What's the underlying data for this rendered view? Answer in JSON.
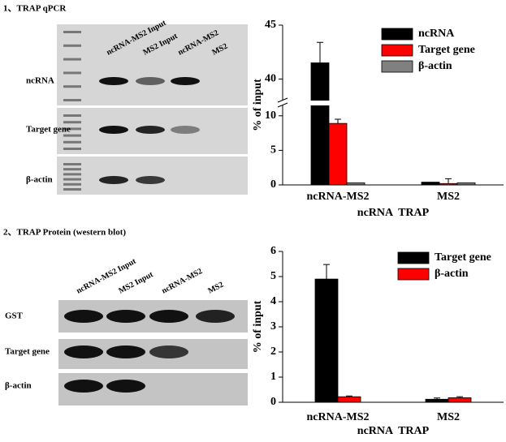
{
  "sections": [
    {
      "title": "1、TRAP qPCR"
    },
    {
      "title": "2、TRAP Protein (western blot)"
    }
  ],
  "gels": [
    {
      "lanes": [
        "ncRNA-MS2 Input",
        "MS2 Input",
        "ncRNA-MS2",
        "MS2"
      ],
      "rows": [
        "ncRNA",
        "Target gene",
        "β-actin"
      ]
    },
    {
      "lanes": [
        "ncRNA-MS2 Input",
        "MS2 Input",
        "ncRNA-MS2",
        "MS2"
      ],
      "rows": [
        "GST",
        "Target gene",
        "β-actin"
      ]
    }
  ],
  "chart_data": [
    {
      "type": "bar",
      "x_label": "ncRNA  TRAP",
      "y_label": "% of input",
      "categories": [
        "ncRNA-MS2",
        "MS2"
      ],
      "series": [
        {
          "name": "ncRNA",
          "color": "#000000",
          "values": [
            41.5,
            0.4
          ],
          "errors": [
            1.9,
            null
          ]
        },
        {
          "name": "Target gene",
          "color": "#ff0000",
          "values": [
            8.9,
            0.2
          ],
          "errors": [
            0.6,
            0.7
          ]
        },
        {
          "name": "β-actin",
          "color": "#808080",
          "values": [
            0.3,
            0.3
          ],
          "errors": [
            null,
            null
          ]
        }
      ],
      "ylim": [
        0,
        45
      ],
      "ybreak": [
        11.5,
        38
      ],
      "yticks": [
        0,
        5,
        10,
        40,
        45
      ],
      "legend": "top-right"
    },
    {
      "type": "bar",
      "x_label": "ncRNA  TRAP",
      "y_label": "% of input",
      "categories": [
        "ncRNA-MS2",
        "MS2"
      ],
      "series": [
        {
          "name": "Target gene",
          "color": "#000000",
          "values": [
            4.9,
            0.12
          ],
          "errors": [
            0.58,
            0.05
          ]
        },
        {
          "name": "β-actin",
          "color": "#ff0000",
          "values": [
            0.22,
            0.18
          ],
          "errors": [
            0.03,
            0.04
          ]
        }
      ],
      "ylim": [
        0,
        6
      ],
      "yticks": [
        0,
        1,
        2,
        3,
        4,
        5,
        6
      ],
      "legend": "top-right"
    }
  ]
}
